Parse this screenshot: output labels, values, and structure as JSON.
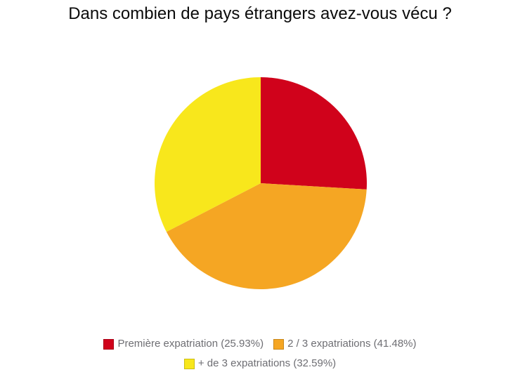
{
  "page": {
    "background": "#ffffff"
  },
  "chart_data": {
    "type": "pie",
    "title": "Dans combien de pays étrangers avez-vous vécu ?",
    "start_angle_deg": 0,
    "direction": "clockwise",
    "legend_position": "bottom",
    "legend_text_color": "#6e6e73",
    "slices": [
      {
        "label": "Première expatriation",
        "pct": 25.93,
        "color": "#d0021b",
        "legend_text": "Première expatriation (25.93%)"
      },
      {
        "label": "2 / 3 expatriations",
        "pct": 41.48,
        "color": "#f5a623",
        "legend_text": "2 / 3 expatriations (41.48%)"
      },
      {
        "label": "+ de 3 expatriations",
        "pct": 32.59,
        "color": "#f8e71c",
        "legend_text": "+ de 3 expatriations (32.59%)"
      }
    ]
  }
}
